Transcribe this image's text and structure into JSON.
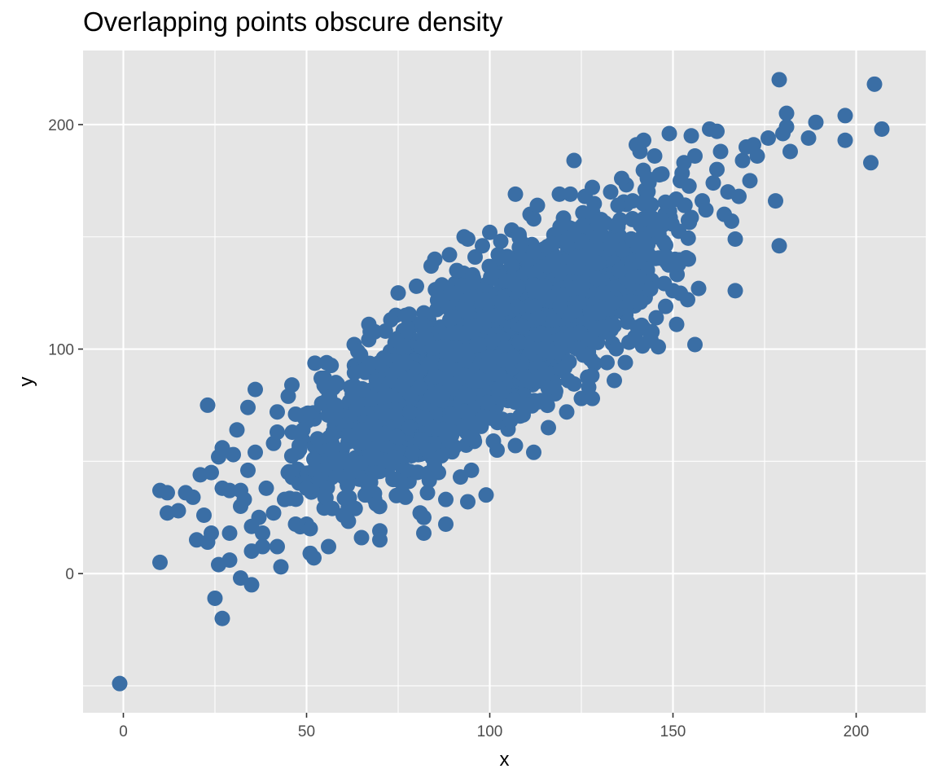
{
  "chart_data": {
    "type": "scatter",
    "title": "Overlapping points obscure density",
    "xlabel": "x",
    "ylabel": "y",
    "xlim": [
      -11,
      219
    ],
    "ylim": [
      -62,
      233
    ],
    "x_ticks": [
      0,
      50,
      100,
      150,
      200
    ],
    "y_ticks": [
      0,
      100,
      200
    ],
    "x_tick_labels": [
      "0",
      "50",
      "100",
      "150",
      "200"
    ],
    "y_tick_labels": [
      "0",
      "100",
      "200"
    ],
    "grid": true,
    "legend": "none",
    "background": "#e5e5e5",
    "point_color": "#3a6ea5",
    "notes": "Dense cloud of heavily overlapping points; only outer points are individually visible. Approximately 3000 points total, y roughly linear in x.",
    "series": [
      {
        "values": [
          [
            -1,
            -49
          ],
          [
            10,
            5
          ],
          [
            10,
            37
          ],
          [
            12,
            36
          ],
          [
            12,
            27
          ],
          [
            15,
            28
          ],
          [
            17,
            36
          ],
          [
            19,
            34
          ],
          [
            21,
            44
          ],
          [
            20,
            15
          ],
          [
            22,
            26
          ],
          [
            23,
            14
          ],
          [
            24,
            18
          ],
          [
            23,
            75
          ],
          [
            24,
            45
          ],
          [
            26,
            52
          ],
          [
            27,
            56
          ],
          [
            27,
            38
          ],
          [
            26,
            4
          ],
          [
            25,
            -11
          ],
          [
            27,
            -20
          ],
          [
            29,
            6
          ],
          [
            29,
            18
          ],
          [
            30,
            53
          ],
          [
            29,
            37
          ],
          [
            31,
            64
          ],
          [
            32,
            37
          ],
          [
            32,
            30
          ],
          [
            32,
            -2
          ],
          [
            34,
            74
          ],
          [
            34,
            46
          ],
          [
            33,
            33
          ],
          [
            35,
            -5
          ],
          [
            35,
            10
          ],
          [
            35,
            21
          ],
          [
            36,
            82
          ],
          [
            36,
            54
          ],
          [
            37,
            25
          ],
          [
            38,
            18
          ],
          [
            38,
            12
          ],
          [
            39,
            38
          ],
          [
            41,
            58
          ],
          [
            41,
            27
          ],
          [
            42,
            63
          ],
          [
            42,
            72
          ],
          [
            42,
            12
          ],
          [
            43,
            3
          ],
          [
            44,
            33
          ],
          [
            45,
            45
          ],
          [
            45,
            79
          ],
          [
            46,
            84
          ],
          [
            47,
            71
          ],
          [
            47,
            22
          ],
          [
            48,
            57
          ],
          [
            49,
            64
          ],
          [
            50,
            38
          ],
          [
            50,
            22
          ],
          [
            51,
            9
          ],
          [
            51,
            20
          ],
          [
            52,
            7
          ],
          [
            52,
            51
          ],
          [
            53,
            60
          ],
          [
            54,
            87
          ],
          [
            55,
            34
          ],
          [
            56,
            12
          ],
          [
            57,
            29
          ],
          [
            58,
            49
          ],
          [
            58,
            75
          ],
          [
            60,
            26
          ],
          [
            62,
            45
          ],
          [
            62,
            83
          ],
          [
            63,
            102
          ],
          [
            64,
            99
          ],
          [
            65,
            64
          ],
          [
            65,
            16
          ],
          [
            66,
            35
          ],
          [
            67,
            111
          ],
          [
            68,
            78
          ],
          [
            69,
            31
          ],
          [
            70,
            19
          ],
          [
            70,
            15
          ],
          [
            71,
            96
          ],
          [
            72,
            50
          ],
          [
            73,
            113
          ],
          [
            74,
            42
          ],
          [
            75,
            125
          ],
          [
            76,
            84
          ],
          [
            77,
            34
          ],
          [
            78,
            65
          ],
          [
            80,
            128
          ],
          [
            81,
            27
          ],
          [
            82,
            18
          ],
          [
            82,
            25
          ],
          [
            83,
            36
          ],
          [
            84,
            137
          ],
          [
            85,
            140
          ],
          [
            86,
            45
          ],
          [
            87,
            101
          ],
          [
            88,
            22
          ],
          [
            88,
            33
          ],
          [
            89,
            142
          ],
          [
            90,
            70
          ],
          [
            91,
            135
          ],
          [
            92,
            43
          ],
          [
            93,
            150
          ],
          [
            94,
            149
          ],
          [
            94,
            32
          ],
          [
            95,
            46
          ],
          [
            96,
            141
          ],
          [
            97,
            102
          ],
          [
            98,
            146
          ],
          [
            99,
            35
          ],
          [
            100,
            152
          ],
          [
            101,
            59
          ],
          [
            102,
            55
          ],
          [
            103,
            148
          ],
          [
            104,
            95
          ],
          [
            106,
            153
          ],
          [
            107,
            169
          ],
          [
            107,
            57
          ],
          [
            108,
            151
          ],
          [
            109,
            110
          ],
          [
            110,
            75
          ],
          [
            111,
            160
          ],
          [
            112,
            158
          ],
          [
            112,
            54
          ],
          [
            113,
            164
          ],
          [
            114,
            107
          ],
          [
            115,
            128
          ],
          [
            116,
            65
          ],
          [
            117,
            147
          ],
          [
            119,
            169
          ],
          [
            120,
            156
          ],
          [
            121,
            72
          ],
          [
            122,
            169
          ],
          [
            123,
            184
          ],
          [
            124,
            100
          ],
          [
            125,
            78
          ],
          [
            126,
            168
          ],
          [
            127,
            83
          ],
          [
            128,
            172
          ],
          [
            128,
            78
          ],
          [
            130,
            156
          ],
          [
            132,
            94
          ],
          [
            133,
            170
          ],
          [
            134,
            86
          ],
          [
            135,
            164
          ],
          [
            136,
            176
          ],
          [
            137,
            94
          ],
          [
            138,
            103
          ],
          [
            139,
            166
          ],
          [
            140,
            191
          ],
          [
            141,
            188
          ],
          [
            142,
            193
          ],
          [
            143,
            176
          ],
          [
            144,
            104
          ],
          [
            145,
            186
          ],
          [
            146,
            101
          ],
          [
            147,
            178
          ],
          [
            148,
            119
          ],
          [
            149,
            196
          ],
          [
            150,
            126
          ],
          [
            151,
            111
          ],
          [
            152,
            175
          ],
          [
            153,
            183
          ],
          [
            154,
            122
          ],
          [
            155,
            195
          ],
          [
            156,
            186
          ],
          [
            156,
            102
          ],
          [
            157,
            127
          ],
          [
            158,
            166
          ],
          [
            159,
            162
          ],
          [
            160,
            198
          ],
          [
            161,
            174
          ],
          [
            162,
            197
          ],
          [
            162,
            180
          ],
          [
            163,
            188
          ],
          [
            164,
            160
          ],
          [
            165,
            170
          ],
          [
            166,
            157
          ],
          [
            167,
            149
          ],
          [
            167,
            126
          ],
          [
            168,
            168
          ],
          [
            169,
            184
          ],
          [
            170,
            190
          ],
          [
            171,
            175
          ],
          [
            172,
            191
          ],
          [
            173,
            186
          ],
          [
            176,
            194
          ],
          [
            178,
            166
          ],
          [
            179,
            146
          ],
          [
            179,
            220
          ],
          [
            180,
            196
          ],
          [
            181,
            199
          ],
          [
            181,
            205
          ],
          [
            182,
            188
          ],
          [
            187,
            194
          ],
          [
            189,
            201
          ],
          [
            197,
            204
          ],
          [
            197,
            193
          ],
          [
            204,
            183
          ],
          [
            205,
            218
          ],
          [
            207,
            198
          ]
        ]
      }
    ]
  }
}
